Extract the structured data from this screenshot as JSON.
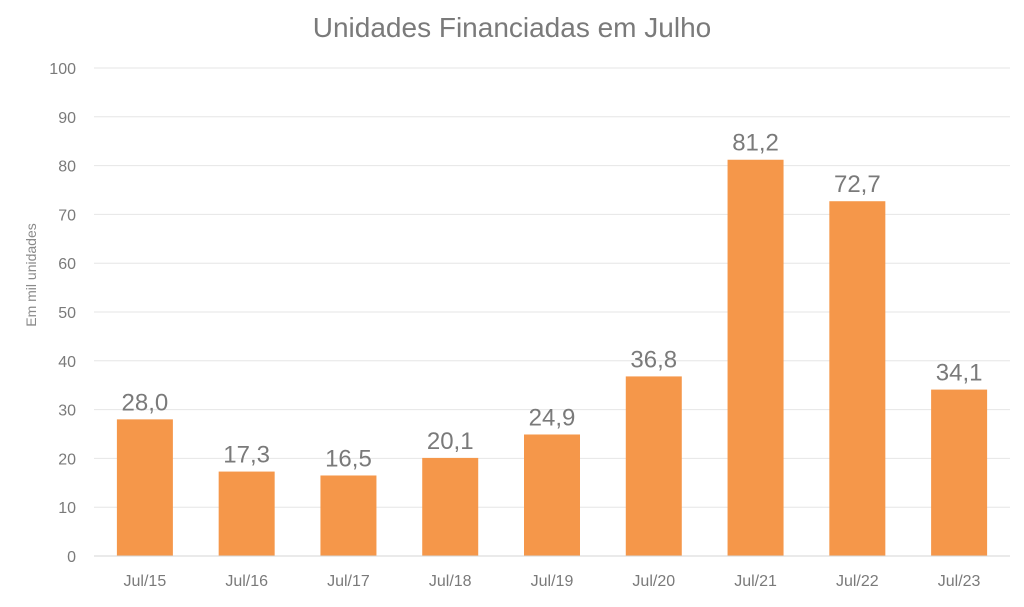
{
  "chart_data": {
    "type": "bar",
    "title": "Unidades Financiadas em Julho",
    "ylabel": "Em mil unidades",
    "xlabel": "",
    "categories": [
      "Jul/15",
      "Jul/16",
      "Jul/17",
      "Jul/18",
      "Jul/19",
      "Jul/20",
      "Jul/21",
      "Jul/22",
      "Jul/23"
    ],
    "values": [
      28.0,
      17.3,
      16.5,
      20.1,
      24.9,
      36.8,
      81.2,
      72.7,
      34.1
    ],
    "value_labels": [
      "28,0",
      "17,3",
      "16,5",
      "20,1",
      "24,9",
      "36,8",
      "81,2",
      "72,7",
      "34,1"
    ],
    "yticks": [
      "0",
      "10",
      "20",
      "30",
      "40",
      "50",
      "60",
      "70",
      "80",
      "90",
      "100"
    ],
    "ylim": [
      0,
      100
    ],
    "grid": true,
    "legend": "none",
    "bar_color": "#f5974a",
    "grid_color": "#e6e6e6",
    "text_color": "#7a7a7a"
  }
}
